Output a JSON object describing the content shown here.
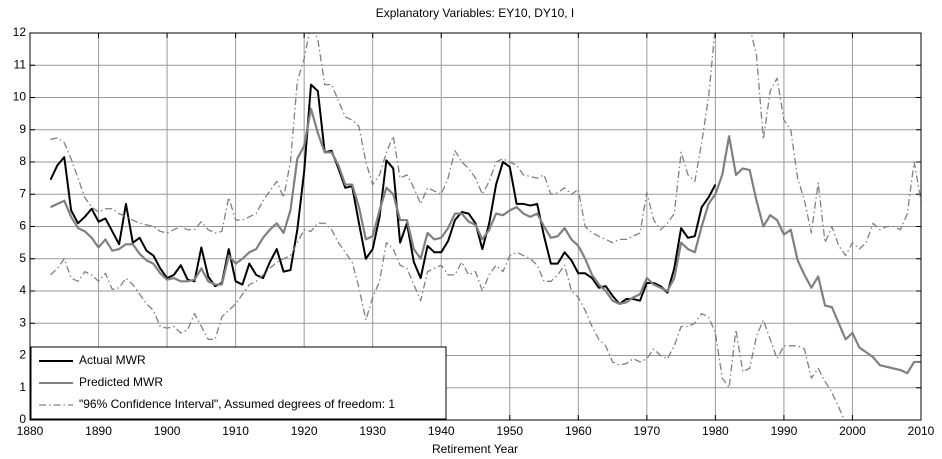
{
  "chart_data": {
    "type": "line",
    "title": "Explanatory Variables: EY10, DY10, I",
    "x_label": "Retirement Year",
    "x": [
      1883,
      1884,
      1885,
      1886,
      1887,
      1888,
      1889,
      1890,
      1891,
      1892,
      1893,
      1894,
      1895,
      1896,
      1897,
      1898,
      1899,
      1900,
      1901,
      1902,
      1903,
      1904,
      1905,
      1906,
      1907,
      1908,
      1909,
      1910,
      1911,
      1912,
      1913,
      1914,
      1915,
      1916,
      1917,
      1918,
      1919,
      1920,
      1921,
      1922,
      1923,
      1924,
      1925,
      1926,
      1927,
      1928,
      1929,
      1930,
      1931,
      1932,
      1933,
      1934,
      1935,
      1936,
      1937,
      1938,
      1939,
      1940,
      1941,
      1942,
      1943,
      1944,
      1945,
      1946,
      1947,
      1948,
      1949,
      1950,
      1951,
      1952,
      1953,
      1954,
      1955,
      1956,
      1957,
      1958,
      1959,
      1960,
      1961,
      1962,
      1963,
      1964,
      1965,
      1966,
      1967,
      1968,
      1969,
      1970,
      1971,
      1972,
      1973,
      1974,
      1975,
      1976,
      1977,
      1978,
      1979,
      1980,
      1981,
      1982,
      1983,
      1984,
      1985,
      1986,
      1987,
      1988,
      1989,
      1990,
      1991,
      1992,
      1993,
      1994,
      1995,
      1996,
      1997,
      1998,
      1999,
      2000,
      2001,
      2002,
      2003,
      2004,
      2005,
      2006,
      2007,
      2008,
      2009,
      2010
    ],
    "xlim": [
      1880,
      2010
    ],
    "xticks": [
      1880,
      1890,
      1900,
      1910,
      1920,
      1930,
      1940,
      1950,
      1960,
      1970,
      1980,
      1990,
      2000,
      2010
    ],
    "ylim": [
      0,
      12
    ],
    "yticks": [
      0,
      1,
      2,
      3,
      4,
      5,
      6,
      7,
      8,
      9,
      10,
      11,
      12
    ],
    "grid": true,
    "legend": "lower-left",
    "series": [
      {
        "name": "Actual MWR",
        "color": "#000000",
        "dash": "solid",
        "values": [
          7.45,
          7.9,
          8.15,
          6.5,
          6.1,
          6.3,
          6.55,
          6.15,
          6.25,
          5.85,
          5.45,
          6.7,
          5.5,
          5.65,
          5.25,
          5.1,
          4.7,
          4.4,
          4.5,
          4.8,
          4.35,
          4.3,
          5.35,
          4.45,
          4.15,
          4.25,
          5.3,
          4.3,
          4.2,
          4.85,
          4.5,
          4.4,
          4.9,
          5.3,
          4.6,
          4.65,
          5.9,
          7.7,
          10.4,
          10.2,
          8.3,
          8.35,
          7.8,
          7.2,
          7.25,
          6.1,
          5.0,
          5.3,
          6.3,
          8.05,
          7.8,
          5.5,
          6.1,
          4.9,
          4.4,
          5.4,
          5.2,
          5.2,
          5.55,
          6.2,
          6.45,
          6.4,
          6.1,
          5.3,
          6.1,
          7.3,
          8.0,
          7.85,
          6.7,
          6.7,
          6.65,
          6.7,
          5.7,
          4.85,
          4.85,
          5.2,
          4.95,
          4.55,
          4.55,
          4.4,
          4.1,
          4.15,
          3.85,
          3.6,
          3.75,
          3.75,
          3.7,
          4.25,
          4.25,
          4.15,
          3.95,
          4.7,
          5.95,
          5.65,
          5.7,
          6.6,
          6.9,
          7.3,
          null,
          null,
          null,
          null,
          null,
          null,
          null,
          null,
          null,
          null,
          null,
          null,
          null,
          null,
          null,
          null,
          null,
          null,
          null,
          null,
          null,
          null,
          null,
          null,
          null,
          null,
          null,
          null,
          null,
          null
        ]
      },
      {
        "name": "Predicted MWR",
        "color": "#808080",
        "dash": "solid",
        "values": [
          6.6,
          6.7,
          6.8,
          6.3,
          5.95,
          5.85,
          5.65,
          5.35,
          5.6,
          5.25,
          5.3,
          5.45,
          5.45,
          5.15,
          4.95,
          4.85,
          4.55,
          4.35,
          4.4,
          4.3,
          4.3,
          4.35,
          4.7,
          4.3,
          4.2,
          4.2,
          5.1,
          4.85,
          5.0,
          5.2,
          5.3,
          5.65,
          5.9,
          6.1,
          5.8,
          6.5,
          8.1,
          8.5,
          9.65,
          8.9,
          8.3,
          8.3,
          7.9,
          7.3,
          7.3,
          6.6,
          5.6,
          5.7,
          6.5,
          7.2,
          7.0,
          6.2,
          6.2,
          5.3,
          5.0,
          5.8,
          5.6,
          5.65,
          5.95,
          6.4,
          6.4,
          6.15,
          6.05,
          5.6,
          5.9,
          6.4,
          6.35,
          6.5,
          6.6,
          6.4,
          6.3,
          6.4,
          6.0,
          5.65,
          5.7,
          5.95,
          5.6,
          5.4,
          5.0,
          4.5,
          4.2,
          4.0,
          3.7,
          3.6,
          3.65,
          3.8,
          3.9,
          4.4,
          4.2,
          4.1,
          4.0,
          4.4,
          5.5,
          5.3,
          5.2,
          6.0,
          6.7,
          7.0,
          7.6,
          8.8,
          7.6,
          7.8,
          7.75,
          6.8,
          6.0,
          6.35,
          6.2,
          5.75,
          5.9,
          4.95,
          4.5,
          4.1,
          4.45,
          3.55,
          3.5,
          3.0,
          2.5,
          2.7,
          2.25,
          2.1,
          1.95,
          1.7,
          1.65,
          1.6,
          1.55,
          1.45,
          1.8,
          1.8
        ]
      },
      {
        "name": "\"96% Confidence Interval\", Assumed degrees of freedom: 1",
        "color": "#808080",
        "dash": "dashdot",
        "upper": [
          8.7,
          8.75,
          8.6,
          8.1,
          7.5,
          6.9,
          6.6,
          6.45,
          6.55,
          6.55,
          6.4,
          6.3,
          6.2,
          6.1,
          6.05,
          6.0,
          5.85,
          5.8,
          5.9,
          6.0,
          5.9,
          5.9,
          6.15,
          5.9,
          5.8,
          5.85,
          6.9,
          6.2,
          6.2,
          6.3,
          6.4,
          6.8,
          7.1,
          7.4,
          6.9,
          8.0,
          10.5,
          11.2,
          12.3,
          11.8,
          10.4,
          10.4,
          9.9,
          9.4,
          9.3,
          9.1,
          8.0,
          7.3,
          7.6,
          8.3,
          8.8,
          7.5,
          7.6,
          7.2,
          6.7,
          7.2,
          7.1,
          7.0,
          7.5,
          8.35,
          8.0,
          7.8,
          7.5,
          7.0,
          7.4,
          8.0,
          8.1,
          8.0,
          7.9,
          7.6,
          7.55,
          7.5,
          7.6,
          7.0,
          7.05,
          7.2,
          7.0,
          7.15,
          6.0,
          5.8,
          5.7,
          5.6,
          5.5,
          5.6,
          5.6,
          5.7,
          5.8,
          7.05,
          6.2,
          5.9,
          6.1,
          6.4,
          8.3,
          7.6,
          7.4,
          8.6,
          10.0,
          12.2,
          12.3,
          13.2,
          12.8,
          12.5,
          12.2,
          11.3,
          8.7,
          10.2,
          10.6,
          9.3,
          9.0,
          7.5,
          6.8,
          5.8,
          7.35,
          5.5,
          6.0,
          5.4,
          5.1,
          5.5,
          5.3,
          5.5,
          6.1,
          5.9,
          6.0,
          6.0,
          5.9,
          6.4,
          8.0,
          6.8
        ],
        "lower": [
          4.5,
          4.7,
          5.0,
          4.4,
          4.3,
          4.6,
          4.5,
          4.3,
          4.55,
          4.05,
          4.1,
          4.4,
          4.2,
          3.9,
          3.6,
          3.4,
          2.9,
          2.85,
          2.9,
          2.7,
          2.8,
          3.3,
          2.9,
          2.5,
          2.5,
          3.2,
          3.4,
          3.6,
          3.9,
          4.2,
          4.3,
          4.5,
          4.7,
          4.9,
          5.0,
          5.1,
          5.5,
          5.9,
          5.85,
          6.1,
          6.1,
          5.9,
          5.5,
          5.2,
          4.9,
          4.1,
          3.1,
          3.8,
          4.3,
          5.5,
          5.3,
          4.8,
          4.7,
          4.2,
          3.7,
          4.6,
          4.7,
          4.8,
          4.5,
          4.5,
          4.9,
          4.5,
          4.6,
          4.0,
          4.5,
          4.8,
          4.6,
          5.1,
          5.2,
          5.1,
          5.0,
          4.8,
          4.3,
          4.3,
          4.5,
          4.8,
          4.0,
          3.8,
          3.4,
          2.9,
          2.5,
          2.3,
          1.8,
          1.7,
          1.75,
          1.9,
          1.8,
          1.9,
          2.2,
          2.0,
          1.9,
          2.3,
          2.9,
          2.9,
          3.0,
          3.3,
          3.2,
          2.7,
          1.3,
          1.0,
          2.8,
          1.5,
          1.6,
          2.6,
          3.1,
          2.5,
          1.9,
          2.3,
          2.3,
          2.3,
          2.2,
          1.3,
          1.6,
          1.2,
          0.85,
          0.4,
          -0.1,
          null,
          null,
          null,
          null,
          null,
          null,
          null,
          null,
          null,
          null,
          null
        ]
      }
    ]
  }
}
